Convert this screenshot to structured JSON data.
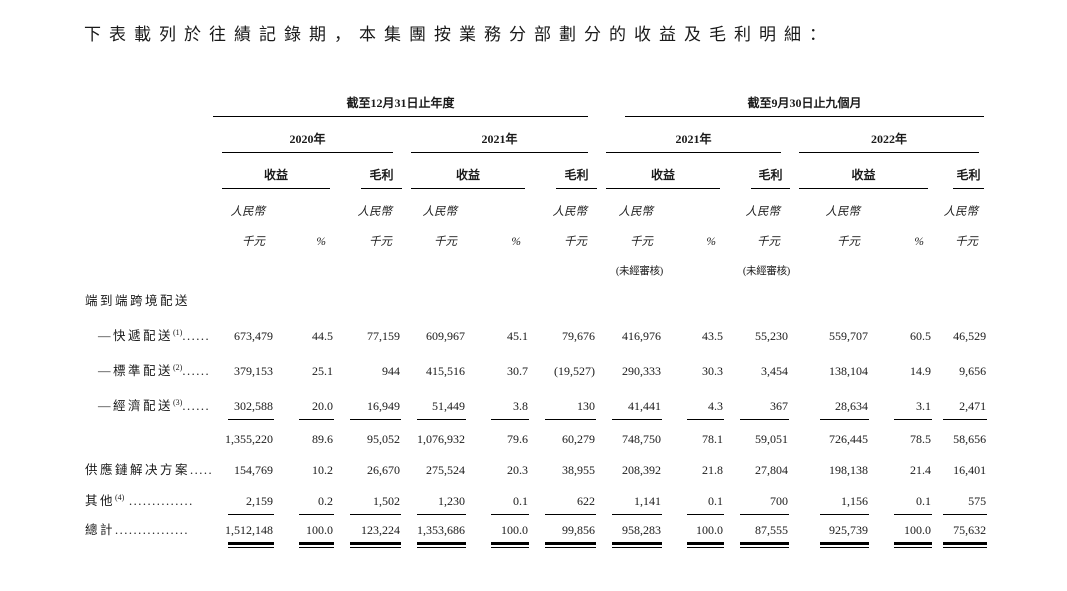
{
  "page": {
    "title": "下表載列於往績記錄期，本集團按業務分部劃分的收益及毛利明細："
  },
  "table": {
    "groups": [
      {
        "label": "截至12月31日止年度",
        "years": [
          "2020年",
          "2021年"
        ]
      },
      {
        "label": "截至9月30日止九個月",
        "years": [
          "2021年",
          "2022年"
        ]
      }
    ],
    "col_headers": {
      "revenue": "收益",
      "gross_profit": "毛利",
      "currency_line1": "人民幣",
      "currency_line2": "千元",
      "percent": "%",
      "unaudited": "(未經審核)"
    },
    "columns": [
      {
        "kind": "amount",
        "unaudited": false
      },
      {
        "kind": "percent",
        "unaudited": false
      },
      {
        "kind": "amount",
        "unaudited": false
      },
      {
        "kind": "amount",
        "unaudited": false
      },
      {
        "kind": "percent",
        "unaudited": false
      },
      {
        "kind": "amount",
        "unaudited": false
      },
      {
        "kind": "amount",
        "unaudited": true
      },
      {
        "kind": "percent",
        "unaudited": false
      },
      {
        "kind": "amount",
        "unaudited": true
      },
      {
        "kind": "amount",
        "unaudited": false
      },
      {
        "kind": "percent",
        "unaudited": false
      },
      {
        "kind": "amount",
        "unaudited": false
      }
    ],
    "rows": [
      {
        "type": "section",
        "indent": false,
        "label": "端到端跨境配送",
        "sup": "",
        "dots": "",
        "values": [
          "",
          "",
          "",
          "",
          "",
          "",
          "",
          "",
          "",
          "",
          "",
          ""
        ]
      },
      {
        "type": "data",
        "indent": true,
        "label": "—快遞配送",
        "sup": "(1)",
        "dots": "......",
        "values": [
          "673,479",
          "44.5",
          "77,159",
          "609,967",
          "45.1",
          "79,676",
          "416,976",
          "43.5",
          "55,230",
          "559,707",
          "60.5",
          "46,529"
        ]
      },
      {
        "type": "data",
        "indent": true,
        "label": "—標準配送",
        "sup": "(2)",
        "dots": "......",
        "values": [
          "379,153",
          "25.1",
          "944",
          "415,516",
          "30.7",
          "(19,527)",
          "290,333",
          "30.3",
          "3,454",
          "138,104",
          "14.9",
          "9,656"
        ]
      },
      {
        "type": "data-rule",
        "indent": true,
        "label": "—經濟配送",
        "sup": "(3)",
        "dots": "......",
        "values": [
          "302,588",
          "20.0",
          "16,949",
          "51,449",
          "3.8",
          "130",
          "41,441",
          "4.3",
          "367",
          "28,634",
          "3.1",
          "2,471"
        ]
      },
      {
        "type": "subtotal",
        "indent": false,
        "label": "",
        "sup": "",
        "dots": "",
        "values": [
          "1,355,220",
          "89.6",
          "95,052",
          "1,076,932",
          "79.6",
          "60,279",
          "748,750",
          "78.1",
          "59,051",
          "726,445",
          "78.5",
          "58,656"
        ]
      },
      {
        "type": "data",
        "indent": false,
        "label": "供應鏈解决方案",
        "sup": "",
        "dots": ".....",
        "values": [
          "154,769",
          "10.2",
          "26,670",
          "275,524",
          "20.3",
          "38,955",
          "208,392",
          "21.8",
          "27,804",
          "198,138",
          "21.4",
          "16,401"
        ]
      },
      {
        "type": "data-rule",
        "indent": false,
        "label": "其他",
        "sup": "(4)",
        "dots": " ..............",
        "values": [
          "2,159",
          "0.2",
          "1,502",
          "1,230",
          "0.1",
          "622",
          "1,141",
          "0.1",
          "700",
          "1,156",
          "0.1",
          "575"
        ]
      },
      {
        "type": "total",
        "indent": false,
        "label": "總計",
        "sup": "",
        "dots": "................",
        "values": [
          "1,512,148",
          "100.0",
          "123,224",
          "1,353,686",
          "100.0",
          "99,856",
          "958,283",
          "100.0",
          "87,555",
          "925,739",
          "100.0",
          "75,632"
        ]
      }
    ]
  }
}
